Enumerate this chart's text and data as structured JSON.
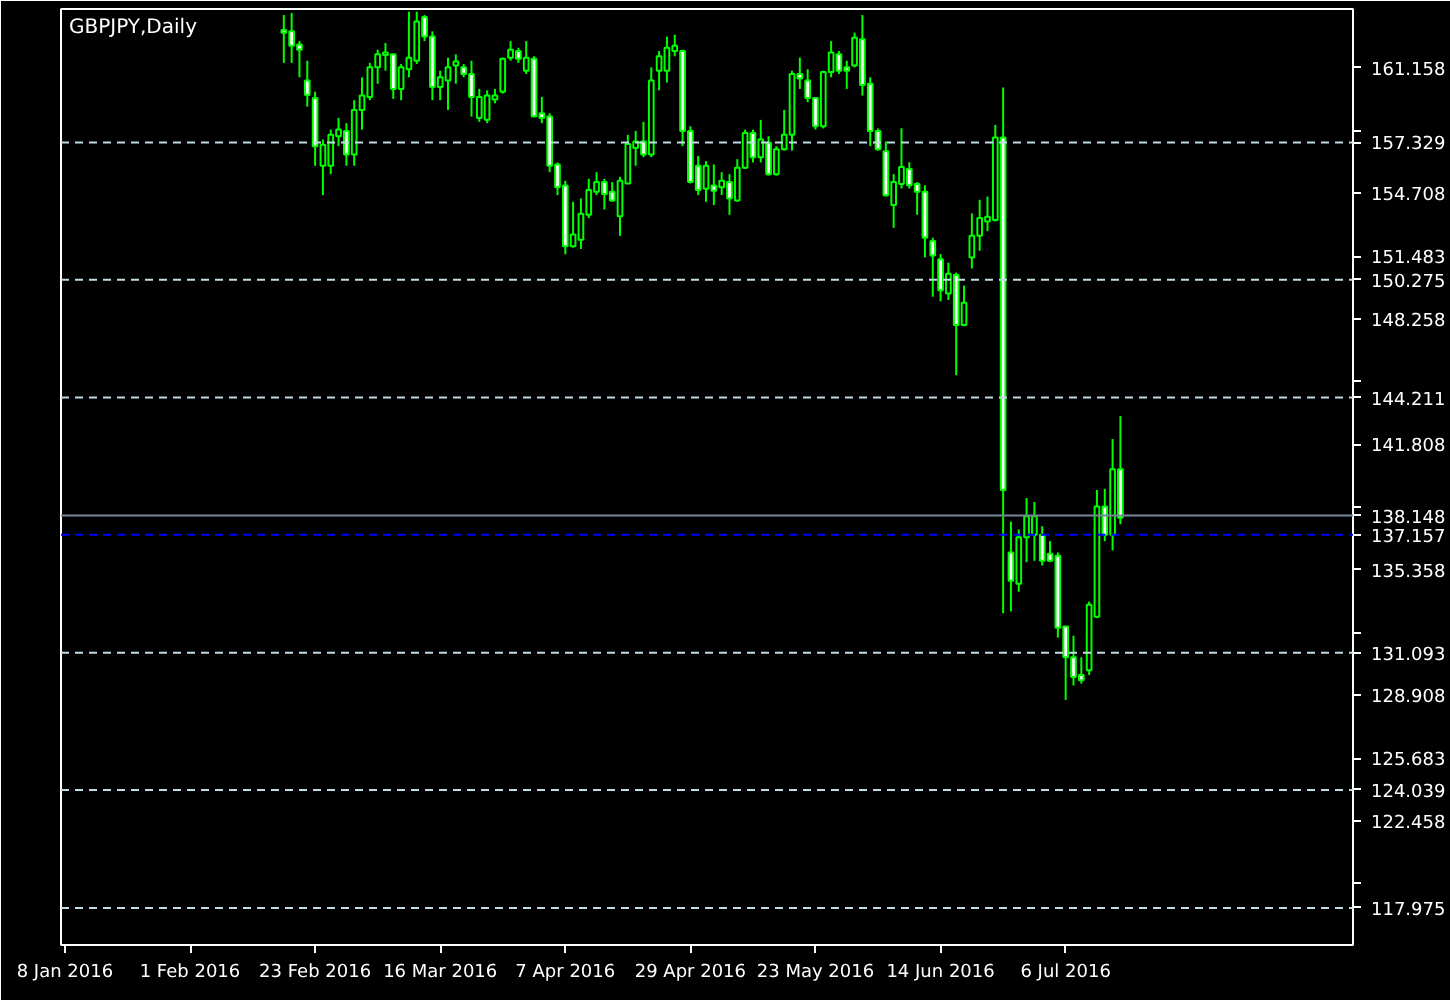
{
  "chart_data": {
    "type": "candlestick",
    "title": "GBPJPY,Daily",
    "color": "#00ff00",
    "categories": [
      "8 Jan 2016",
      null,
      null,
      null,
      null,
      null,
      null,
      null,
      null,
      null,
      null,
      null,
      null,
      null,
      null,
      null,
      "1 Feb 2016",
      null,
      null,
      null,
      null,
      null,
      null,
      null,
      null,
      null,
      null,
      null,
      null,
      null,
      null,
      null,
      "23 Feb 2016",
      null,
      null,
      null,
      null,
      null,
      null,
      null,
      null,
      null,
      null,
      null,
      null,
      null,
      null,
      null,
      "16 Mar 2016",
      null,
      null,
      null,
      null,
      null,
      null,
      null,
      null,
      null,
      null,
      null,
      null,
      null,
      null,
      null,
      "7 Apr 2016",
      null,
      null,
      null,
      null,
      null,
      null,
      null,
      null,
      null,
      null,
      null,
      null,
      null,
      null,
      null,
      "29 Apr 2016",
      null,
      null,
      null,
      null,
      null,
      null,
      null,
      null,
      null,
      null,
      null,
      null,
      null,
      null,
      null,
      "23 May 2016",
      null,
      null,
      null,
      null,
      null,
      null,
      null,
      null,
      null,
      null,
      null,
      null,
      null,
      null,
      null,
      "14 Jun 2016",
      null,
      null,
      null,
      null,
      null,
      null,
      null,
      null,
      null,
      null,
      null,
      null,
      null,
      null,
      null,
      "6 Jul 2016",
      null,
      null,
      null,
      null,
      null,
      null,
      null,
      null,
      null,
      null,
      null,
      null,
      null,
      null,
      null,
      null,
      null,
      null,
      null,
      null,
      null,
      null,
      null,
      null,
      null,
      null,
      null,
      null,
      null,
      null,
      null,
      null,
      null,
      null,
      null,
      null
    ],
    "ohlc": [
      null,
      null,
      null,
      null,
      null,
      null,
      null,
      null,
      null,
      null,
      null,
      null,
      null,
      null,
      null,
      null,
      null,
      null,
      null,
      null,
      null,
      null,
      null,
      null,
      null,
      null,
      null,
      null,
      [
        163.11,
        163.88,
        161.42,
        162.97
      ],
      [
        163.04,
        163.99,
        161.42,
        162.3
      ],
      [
        162.37,
        162.54,
        160.68,
        162.1
      ],
      [
        160.51,
        161.53,
        159.17,
        159.77
      ],
      [
        159.61,
        159.94,
        156.13,
        157.14
      ],
      [
        156.13,
        157.48,
        154.62,
        157.21
      ],
      [
        156.13,
        157.99,
        155.7,
        157.72
      ],
      [
        157.65,
        158.59,
        157.14,
        157.99
      ],
      [
        157.92,
        158.32,
        156.13,
        156.71
      ],
      [
        156.71,
        159.5,
        156.13,
        159.0
      ],
      [
        159.0,
        160.68,
        157.99,
        159.74
      ],
      [
        159.67,
        161.42,
        159.5,
        161.19
      ],
      [
        161.19,
        162.1,
        160.35,
        161.86
      ],
      [
        161.83,
        162.44,
        161.02,
        161.96
      ],
      [
        161.86,
        161.86,
        159.57,
        160.08
      ],
      [
        160.08,
        161.36,
        159.5,
        161.19
      ],
      [
        161.09,
        164.05,
        160.68,
        161.69
      ],
      [
        161.53,
        164.05,
        161.36,
        163.55
      ],
      [
        163.78,
        163.88,
        162.54,
        162.77
      ],
      [
        162.77,
        163.04,
        159.5,
        160.18
      ],
      [
        160.18,
        161.02,
        159.5,
        160.68
      ],
      [
        160.51,
        161.69,
        159.0,
        161.19
      ],
      [
        161.29,
        161.86,
        160.35,
        161.49
      ],
      [
        161.19,
        161.36,
        160.68,
        160.85
      ],
      [
        160.85,
        161.53,
        158.66,
        159.67
      ],
      [
        158.59,
        160.08,
        158.39,
        159.67
      ],
      [
        158.49,
        160.01,
        158.32,
        159.74
      ],
      [
        159.54,
        160.08,
        159.34,
        159.74
      ],
      [
        159.94,
        161.69,
        159.84,
        161.63
      ],
      [
        161.69,
        162.54,
        161.53,
        162.1
      ],
      [
        162.03,
        162.2,
        161.42,
        161.63
      ],
      [
        161.02,
        162.54,
        160.85,
        161.69
      ],
      [
        161.63,
        161.76,
        158.66,
        158.66
      ],
      [
        158.83,
        159.67,
        158.32,
        158.59
      ],
      [
        158.66,
        158.83,
        155.8,
        156.13
      ],
      [
        156.2,
        156.3,
        154.62,
        155.02
      ],
      [
        155.12,
        155.36,
        151.58,
        151.99
      ],
      [
        151.99,
        154.28,
        151.92,
        152.6
      ],
      [
        152.33,
        154.45,
        151.85,
        153.67
      ],
      [
        153.61,
        155.46,
        153.44,
        154.89
      ],
      [
        154.79,
        155.8,
        154.62,
        155.29
      ],
      [
        155.29,
        155.46,
        153.88,
        154.68
      ],
      [
        154.79,
        155.29,
        154.28,
        154.35
      ],
      [
        153.54,
        155.56,
        152.53,
        155.36
      ],
      [
        155.22,
        157.72,
        155.22,
        157.25
      ],
      [
        157.04,
        157.92,
        156.13,
        157.38
      ],
      [
        157.38,
        158.39,
        156.57,
        156.71
      ],
      [
        156.71,
        161.19,
        156.57,
        160.51
      ],
      [
        161.02,
        162.03,
        160.01,
        161.76
      ],
      [
        161.02,
        162.77,
        160.41,
        162.2
      ],
      [
        162.03,
        162.87,
        161.76,
        162.3
      ],
      [
        162.03,
        162.1,
        157.14,
        157.92
      ],
      [
        157.92,
        158.16,
        155.22,
        155.29
      ],
      [
        156.13,
        156.64,
        154.62,
        154.89
      ],
      [
        154.95,
        156.37,
        154.28,
        156.13
      ],
      [
        155.12,
        156.2,
        154.11,
        154.85
      ],
      [
        155.02,
        155.8,
        154.62,
        155.36
      ],
      [
        155.29,
        155.7,
        153.61,
        154.45
      ],
      [
        154.35,
        156.47,
        154.28,
        156.03
      ],
      [
        156.03,
        157.99,
        155.97,
        157.82
      ],
      [
        157.82,
        157.99,
        156.3,
        156.57
      ],
      [
        156.57,
        158.49,
        156.3,
        157.48
      ],
      [
        157.31,
        157.65,
        155.63,
        155.7
      ],
      [
        155.7,
        157.14,
        155.63,
        156.98
      ],
      [
        156.98,
        159.0,
        156.91,
        157.72
      ],
      [
        157.72,
        161.02,
        156.91,
        160.85
      ],
      [
        160.85,
        161.69,
        160.08,
        160.62
      ],
      [
        160.51,
        161.09,
        159.4,
        159.61
      ],
      [
        159.61,
        159.67,
        157.99,
        158.16
      ],
      [
        158.16,
        161.02,
        158.05,
        160.95
      ],
      [
        160.95,
        162.54,
        160.68,
        161.96
      ],
      [
        161.86,
        162.03,
        160.85,
        161.02
      ],
      [
        161.19,
        161.53,
        160.08,
        161.02
      ],
      [
        161.29,
        162.98,
        161.19,
        162.71
      ],
      [
        162.64,
        163.88,
        159.74,
        160.28
      ],
      [
        160.35,
        160.68,
        157.14,
        157.92
      ],
      [
        157.92,
        158.05,
        156.91,
        156.98
      ],
      [
        156.88,
        157.38,
        154.55,
        154.62
      ],
      [
        154.11,
        155.7,
        152.94,
        155.29
      ],
      [
        155.19,
        158.06,
        154.96,
        156.07
      ],
      [
        155.97,
        156.31,
        154.96,
        155.13
      ],
      [
        155.19,
        155.29,
        153.61,
        154.79
      ],
      [
        154.79,
        155.13,
        151.42,
        152.43
      ],
      [
        152.26,
        152.43,
        149.4,
        151.52
      ],
      [
        151.32,
        151.59,
        149.16,
        149.73
      ],
      [
        149.57,
        151.15,
        149.23,
        150.58
      ],
      [
        150.51,
        150.64,
        145.36,
        147.95
      ],
      [
        147.95,
        149.97,
        147.88,
        149.09
      ],
      [
        151.42,
        153.68,
        150.85,
        152.53
      ],
      [
        152.53,
        154.38,
        151.76,
        153.44
      ],
      [
        153.27,
        154.55,
        152.77,
        153.51
      ],
      [
        153.34,
        158.23,
        153.27,
        157.59
      ],
      [
        157.59,
        160.15,
        133.12,
        139.46
      ],
      [
        136.25,
        137.84,
        133.22,
        134.8
      ],
      [
        134.64,
        137.43,
        134.23,
        137.03
      ],
      [
        137.03,
        139.05,
        135.75,
        138.11
      ],
      [
        137.16,
        138.85,
        135.82,
        138.11
      ],
      [
        137.16,
        137.6,
        135.58,
        135.82
      ],
      [
        136.19,
        136.83,
        135.75,
        135.82
      ],
      [
        136.08,
        136.25,
        131.87,
        132.38
      ],
      [
        132.45,
        132.45,
        128.67,
        130.86
      ],
      [
        130.86,
        131.97,
        129.41,
        129.85
      ],
      [
        129.95,
        130.86,
        129.51,
        129.68
      ],
      [
        130.19,
        133.73,
        129.95,
        133.56
      ],
      [
        132.95,
        139.46,
        132.88,
        138.61
      ],
      [
        138.61,
        139.52,
        136.83,
        137.16
      ],
      [
        137.16,
        142.08,
        136.36,
        140.53
      ],
      [
        140.53,
        143.26,
        137.7,
        138.04
      ],
      null,
      null,
      null,
      null,
      null,
      null,
      null,
      null,
      null,
      null,
      null,
      null,
      null,
      null,
      null,
      null,
      null,
      null,
      null,
      null,
      null,
      null,
      null,
      null,
      null,
      null,
      null,
      null,
      null
    ],
    "ylim": [
      116.07,
      164.19
    ],
    "yticks": [
      161.158,
      {
        "value": 157.933,
        "label": null
      },
      154.708,
      151.483,
      148.258,
      {
        "value": 145.033,
        "label": null
      },
      141.808,
      {
        "value": 138.583,
        "label": null
      },
      135.358,
      {
        "value": 132.133,
        "label": null
      },
      128.908,
      125.683,
      122.458,
      {
        "value": 119.233,
        "label": null
      }
    ],
    "ref_lines": [
      {
        "axis": "y",
        "value": 157.329,
        "label": "157.329",
        "color": "#c0dce4",
        "line_style": "dashed"
      },
      {
        "axis": "y",
        "value": 150.275,
        "label": "150.275",
        "color": "#c0dce4",
        "line_style": "dashed"
      },
      {
        "axis": "y",
        "value": 144.211,
        "label": "144.211",
        "color": "#c0dce4",
        "line_style": "dashed"
      },
      {
        "axis": "y",
        "value": 131.093,
        "label": "131.093",
        "color": "#c0dce4",
        "line_style": "dashed"
      },
      {
        "axis": "y",
        "value": 124.039,
        "label": "124.039",
        "color": "#c0dce4",
        "line_style": "dashed"
      },
      {
        "axis": "y",
        "value": 117.975,
        "label": "117.975",
        "color": "#c0dce4",
        "line_style": "dashed"
      },
      {
        "axis": "y",
        "value": 138.148,
        "label": "138.148",
        "color": "#778899",
        "line_style": "solid"
      },
      {
        "axis": "y",
        "value": 137.157,
        "label": "137.157",
        "color": "#0000ff",
        "line_style": "dashed"
      }
    ]
  }
}
